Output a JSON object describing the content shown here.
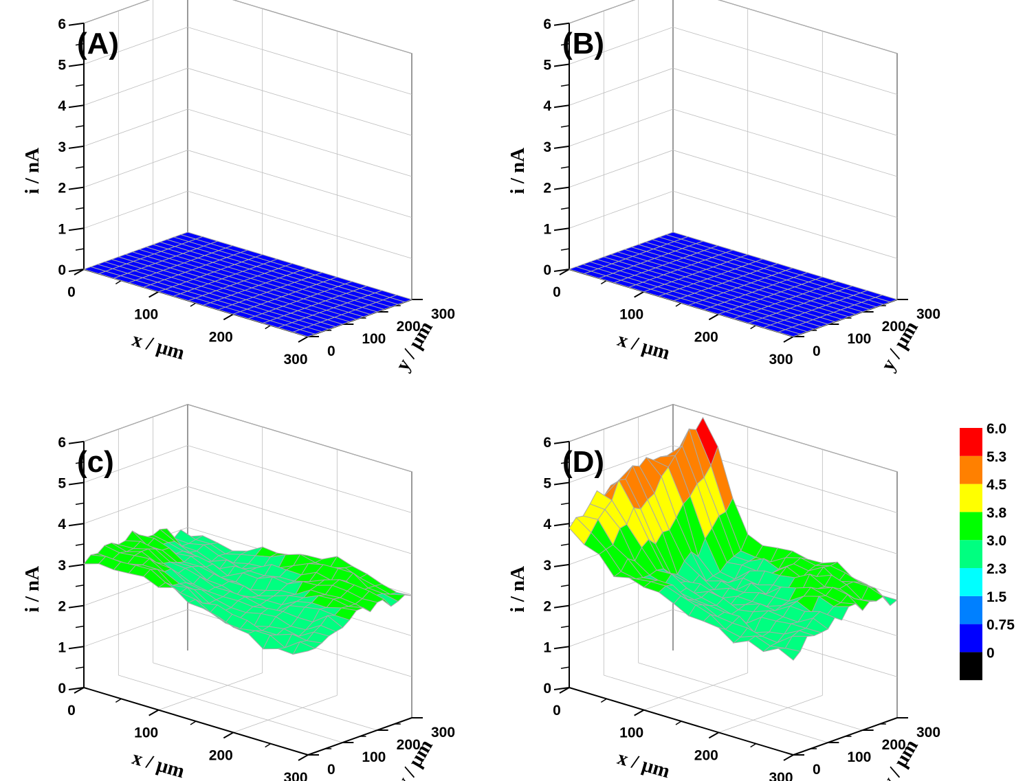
{
  "colors": {
    "background": "#ffffff",
    "mesh_line": "#a9a9a9",
    "grid_line": "#bdbdbd"
  },
  "colorbar": {
    "levels": [
      "0",
      "0.75",
      "1.5",
      "2.3",
      "3.0",
      "3.8",
      "4.5",
      "5.3",
      "6.0"
    ],
    "bands": [
      "#000000",
      "#0000ff",
      "#0080ff",
      "#00ffff",
      "#00ff80",
      "#00ff00",
      "#ffff00",
      "#ff8000",
      "#ff0000"
    ]
  },
  "chart_data": [
    {
      "panel_label": "(A)",
      "type": "surface",
      "xlabel": "x / μm",
      "ylabel": "y / μm",
      "zlabel": "i / nA",
      "xlim": [
        0,
        300
      ],
      "ylim": [
        0,
        300
      ],
      "zlim": [
        0,
        6
      ],
      "x_ticks": [
        "0",
        "100",
        "200",
        "300"
      ],
      "y_ticks": [
        "0",
        "100",
        "200",
        "300"
      ],
      "z_ticks": [
        "0",
        "1",
        "2",
        "3",
        "4",
        "5",
        "6"
      ],
      "grid_points": 16,
      "surface": "flat",
      "base_current": 0.0
    },
    {
      "panel_label": "(B)",
      "type": "surface",
      "xlabel": "x / μm",
      "ylabel": "y / μm",
      "zlabel": "i / nA",
      "xlim": [
        0,
        300
      ],
      "ylim": [
        0,
        300
      ],
      "zlim": [
        0,
        6
      ],
      "x_ticks": [
        "0",
        "100",
        "200",
        "300"
      ],
      "y_ticks": [
        "0",
        "100",
        "200",
        "300"
      ],
      "z_ticks": [
        "0",
        "1",
        "2",
        "3",
        "4",
        "5",
        "6"
      ],
      "grid_points": 16,
      "surface": "flat",
      "base_current": 0.0
    },
    {
      "panel_label": "(c)",
      "type": "surface",
      "xlabel": "x / μm",
      "ylabel": "y / μm",
      "zlabel": "i / nA",
      "xlim": [
        0,
        300
      ],
      "ylim": [
        0,
        300
      ],
      "zlim": [
        0,
        6
      ],
      "x_ticks": [
        "0",
        "100",
        "200",
        "300"
      ],
      "y_ticks": [
        "0",
        "100",
        "200",
        "300"
      ],
      "z_ticks": [
        "0",
        "1",
        "2",
        "3",
        "4",
        "5",
        "6"
      ],
      "grid_points": 16,
      "surface": "noisy",
      "base_current": 3.05,
      "noise": 0.12,
      "ridge_peak": 0.0
    },
    {
      "panel_label": "(D)",
      "type": "surface",
      "xlabel": "x / μm",
      "ylabel": "y / μm",
      "zlabel": "i / nA",
      "xlim": [
        0,
        300
      ],
      "ylim": [
        0,
        300
      ],
      "zlim": [
        0,
        6
      ],
      "x_ticks": [
        "0",
        "100",
        "200",
        "300"
      ],
      "y_ticks": [
        "0",
        "100",
        "200",
        "300"
      ],
      "z_ticks": [
        "0",
        "1",
        "2",
        "3",
        "4",
        "5",
        "6"
      ],
      "grid_points": 16,
      "surface": "noisy",
      "base_current": 3.05,
      "noise": 0.15,
      "ridge_peak": 2.7
    }
  ]
}
